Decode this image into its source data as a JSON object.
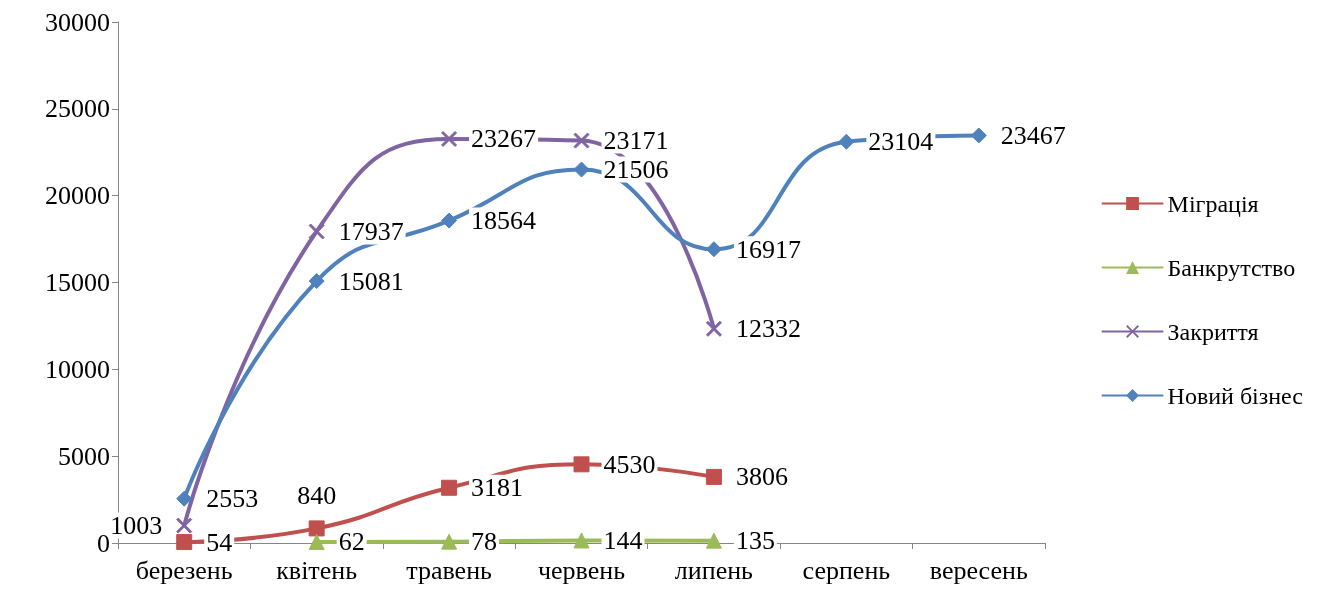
{
  "chart_data": {
    "type": "line",
    "categories": [
      "березень",
      "квітень",
      "травень",
      "червень",
      "липень",
      "серпень",
      "вересень"
    ],
    "series": [
      {
        "name": "Міграція",
        "color": "#c0504d",
        "marker": "square",
        "values": [
          54,
          840,
          3181,
          4530,
          3806,
          null,
          null
        ]
      },
      {
        "name": "Банкрутство",
        "color": "#9bbb59",
        "marker": "triangle",
        "values": [
          null,
          62,
          78,
          144,
          135,
          null,
          null
        ]
      },
      {
        "name": "Закриття",
        "color": "#8064a2",
        "marker": "cross",
        "values": [
          1003,
          17937,
          23267,
          23171,
          12332,
          null,
          null
        ]
      },
      {
        "name": "Новий бізнес",
        "color": "#4f81bd",
        "marker": "diamond",
        "values": [
          2553,
          15081,
          18564,
          21506,
          16917,
          23104,
          23467
        ]
      }
    ],
    "ylim": [
      0,
      30000
    ],
    "yticks": [
      0,
      5000,
      10000,
      15000,
      20000,
      25000,
      30000
    ],
    "grid": false,
    "legend": "right",
    "data_labels": true,
    "line_style": "solid"
  }
}
